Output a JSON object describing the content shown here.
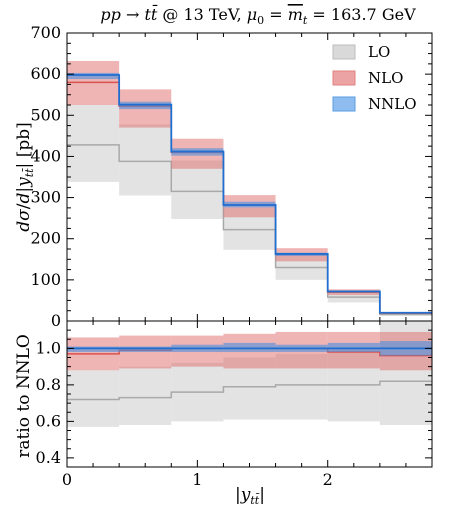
{
  "chart_data": {
    "title": "pp → tt̄ @ 13 TeV, μ₀ = m̄ₜ = 163.7 GeV",
    "xlabel": "|y_{tt̄}|",
    "x_bin_edges": [
      0,
      0.4,
      0.8,
      1.2,
      1.6,
      2.0,
      2.4,
      2.8
    ],
    "x_ticks": [
      "0",
      "1",
      "2"
    ],
    "x_tick_values": [
      0,
      1,
      2
    ],
    "colors": {
      "LO": "#a9a9a9",
      "NLO": "#d9534f",
      "NNLO": "#1f6fd1"
    },
    "legend": [
      "LO",
      "NLO",
      "NNLO"
    ],
    "legend_position": "top-right",
    "panels": [
      {
        "type": "step-band",
        "ylabel": "dσ/d|y_{tt̄}| [pb]",
        "ylim": [
          0,
          700
        ],
        "y_ticks": [
          "0",
          "100",
          "200",
          "300",
          "400",
          "500",
          "600",
          "700"
        ],
        "series": [
          {
            "name": "LO",
            "central": [
              428,
              388,
              315,
              222,
              130,
              58,
              16
            ],
            "low": [
              338,
              305,
              248,
              173,
              100,
              45,
              12
            ],
            "high": [
              525,
              478,
              390,
              275,
              160,
              72,
              20
            ]
          },
          {
            "name": "NLO",
            "central": [
              580,
              522,
              410,
              282,
              162,
              70,
              19
            ],
            "low": [
              525,
              470,
              370,
              252,
              145,
              63,
              17
            ],
            "high": [
              632,
              563,
              443,
              306,
              177,
              77,
              21
            ]
          },
          {
            "name": "NNLO",
            "central": [
              598,
              526,
              412,
              282,
              163,
              72,
              20
            ],
            "low": [
              588,
              515,
              402,
              276,
              158,
              69,
              19
            ],
            "high": [
              603,
              533,
              420,
              290,
              166,
              74,
              21
            ]
          }
        ]
      },
      {
        "type": "step-band",
        "ylabel": "ratio to NNLO",
        "ylim": [
          0.35,
          1.15
        ],
        "y_ticks": [
          "0.4",
          "0.6",
          "0.8",
          "1.0"
        ],
        "y_tick_values": [
          0.4,
          0.6,
          0.8,
          1.0
        ],
        "series": [
          {
            "name": "LO",
            "central": [
              0.72,
              0.73,
              0.76,
              0.79,
              0.8,
              0.8,
              0.82
            ],
            "low": [
              0.57,
              0.58,
              0.6,
              0.61,
              0.61,
              0.6,
              0.58
            ],
            "high": [
              0.88,
              0.9,
              0.92,
              0.95,
              0.97,
              1.0,
              1.15
            ]
          },
          {
            "name": "NLO",
            "central": [
              0.97,
              0.99,
              1.0,
              1.0,
              1.0,
              0.98,
              0.96
            ],
            "low": [
              0.88,
              0.89,
              0.9,
              0.89,
              0.89,
              0.89,
              0.88
            ],
            "high": [
              1.06,
              1.07,
              1.07,
              1.08,
              1.09,
              1.09,
              1.09
            ]
          },
          {
            "name": "NNLO",
            "central": [
              1.0,
              1.0,
              1.0,
              1.0,
              1.0,
              1.0,
              1.0
            ],
            "low": [
              0.98,
              0.98,
              0.98,
              0.98,
              0.98,
              0.98,
              0.96
            ],
            "high": [
              1.01,
              1.01,
              1.02,
              1.03,
              1.02,
              1.03,
              1.04
            ]
          }
        ]
      }
    ]
  }
}
